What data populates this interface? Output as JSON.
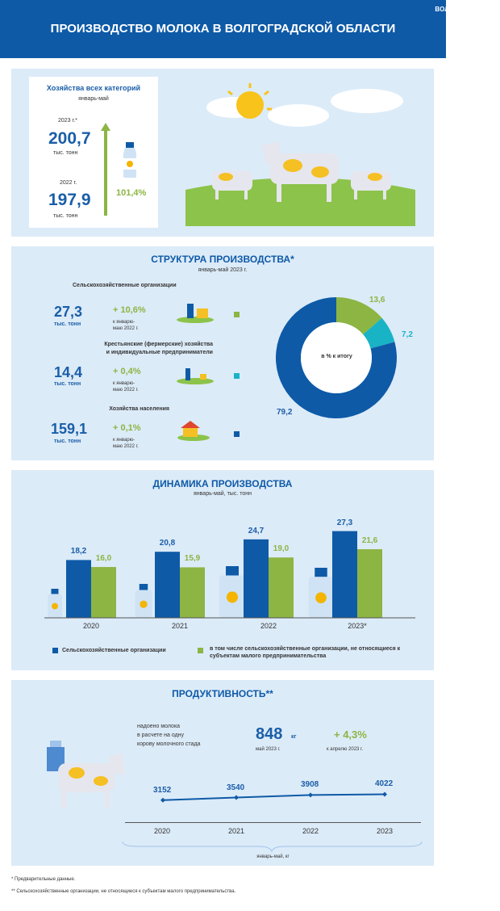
{
  "header": {
    "brand": "ВОЛГОГРАДСТАТ",
    "title": "ПРОИЗВОДСТВО МОЛОКА В ВОЛГОГРАДСКОЙ ОБЛАСТИ"
  },
  "summary": {
    "title": "Хозяйства всех категорий",
    "period": "январь-май",
    "year_2023_label": "2023 г.*",
    "value_2023": "200,7",
    "unit_2023": "тыс. тонн",
    "year_2022_label": "2022 г.",
    "value_2022": "197,9",
    "unit_2022": "тыс. тонн",
    "growth": "101,4%"
  },
  "structure": {
    "title": "СТРУКТУРА ПРОИЗВОДСТВА*",
    "period": "январь-май 2023 г.",
    "donut_center_label": "в % к итогу",
    "items": [
      {
        "label": "Сельскохозяйственные организации",
        "value": "27,3",
        "unit": "тыс. тонн",
        "change": "+ 10,6%",
        "change_note_1": "к январю-",
        "change_note_2": "маю 2022 г."
      },
      {
        "label_1": "Крестьянские (фермерские) хозяйства",
        "label_2": "и индивидуальные предприниматели",
        "value": "14,4",
        "unit": "тыс. тонн",
        "change": "+ 0,4%",
        "change_note_1": "к январю-",
        "change_note_2": "маю 2022 г."
      },
      {
        "label": "Хозяйства населения",
        "value": "159,1",
        "unit": "тыс. тонн",
        "change": "+ 0,1%",
        "change_note_1": "к январю-",
        "change_note_2": "маю 2022 г."
      }
    ],
    "colors": {
      "agri": "#8cb543",
      "farm": "#19b3c6",
      "households": "#0e5aa7"
    }
  },
  "dynamics": {
    "title": "ДИНАМИКА ПРОИЗВОДСТВА",
    "subtitle": "январь-май, тыс. тонн"
  },
  "productivity": {
    "title": "ПРОДУКТИВНОСТЬ**",
    "desc_1": "надоено молока",
    "desc_2": "в расчете на одну",
    "desc_3": "корову молочного стада",
    "value": "848",
    "value_unit": "кг",
    "value_note": "май  2023  г.",
    "change": "+ 4,3%",
    "change_note": "к  апрелю 2023  г.",
    "axis_caption": "январь-май, кг"
  },
  "footnotes": {
    "f1": "* Предварительные данные.",
    "f2": "** Сельскохозяйственные организации, не относящиеся к субъектам малого предпринимательства."
  },
  "chart_data": [
    {
      "type": "pie",
      "title": "",
      "categories": [
        "Сельскохозяйственные организации",
        "Крестьянские (фермерские) хозяйства и индивидуальные предприниматели",
        "Хозяйства населения"
      ],
      "values": [
        13.6,
        7.2,
        79.2
      ],
      "value_labels": [
        "13,6",
        "7,2",
        "79,2"
      ],
      "colors": [
        "#8cb543",
        "#19b3c6",
        "#0e5aa7"
      ]
    },
    {
      "type": "bar",
      "title": "ДИНАМИКА ПРОИЗВОДСТВА",
      "categories": [
        "2020",
        "2021",
        "2022",
        "2023*"
      ],
      "series": [
        {
          "name": "Сельскохозяйственные организации",
          "values": [
            18.2,
            20.8,
            24.7,
            27.3
          ],
          "labels": [
            "18,2",
            "20,8",
            "24,7",
            "27,3"
          ],
          "color": "#0e5aa7"
        },
        {
          "name": "в том числе сельскохозяйственные организации, не относящиеся к субъектам малого предпринимательства",
          "values": [
            16.0,
            15.9,
            19.0,
            21.6
          ],
          "labels": [
            "16,0",
            "15,9",
            "19,0",
            "21,6"
          ],
          "color": "#8cb543"
        }
      ],
      "legend": "bottom",
      "ylim": [
        0,
        30
      ]
    },
    {
      "type": "line",
      "title": "",
      "categories": [
        "2020",
        "2021",
        "2022",
        "2023"
      ],
      "values": [
        3152,
        3540,
        3908,
        4022
      ],
      "labels": [
        "3152",
        "3540",
        "3908",
        "4022"
      ],
      "color": "#0e5aa7"
    }
  ]
}
